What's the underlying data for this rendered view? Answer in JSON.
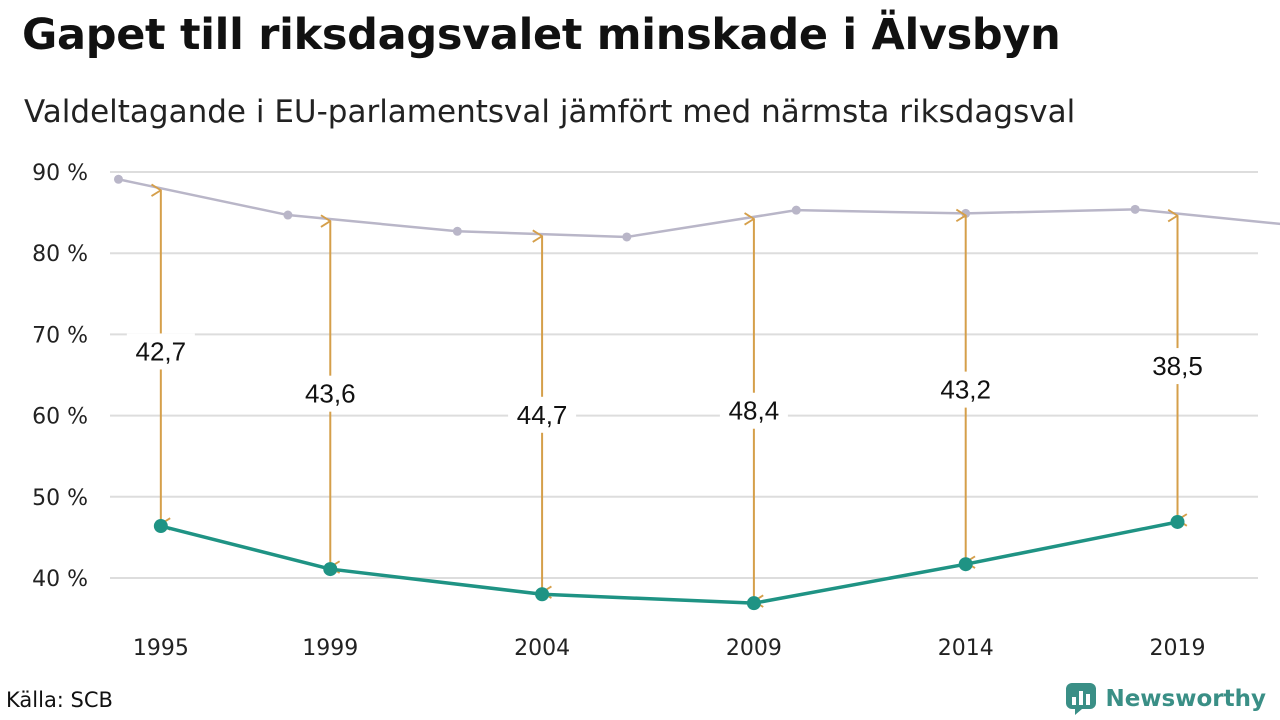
{
  "header": {
    "title": "Gapet till riksdagsvalet minskade i Älvsbyn",
    "subtitle": "Valdeltagande i EU-parlamentsval jämfört med närmsta riksdagsval"
  },
  "footer": {
    "source": "Källa: SCB",
    "brand": "Newsworthy"
  },
  "colors": {
    "eu_line": "#1f9384",
    "riksdag_line": "#b9b6c8",
    "gap_arrow": "#d59f4a",
    "grid": "#dddddd"
  },
  "chart_data": {
    "type": "line",
    "ylim": [
      35,
      90
    ],
    "yticks": [
      40,
      50,
      60,
      70,
      80,
      90
    ],
    "ytick_labels": [
      "40 %",
      "50 %",
      "60 %",
      "70 %",
      "80 %",
      "90 %"
    ],
    "xlim": [
      1993.8,
      2020.9
    ],
    "xticks": [
      1995,
      1999,
      2004,
      2009,
      2014,
      2019
    ],
    "xtick_labels": [
      "1995",
      "1999",
      "2004",
      "2009",
      "2014",
      "2019"
    ],
    "series": [
      {
        "key": "riksdag",
        "x": [
          1994,
          1998,
          2002,
          2006,
          2010,
          2014,
          2018,
          2022
        ],
        "values": [
          89.1,
          84.7,
          82.7,
          82.0,
          85.3,
          84.9,
          85.4,
          83.3
        ]
      },
      {
        "key": "eu",
        "x": [
          1995,
          1999,
          2004,
          2009,
          2014,
          2019
        ],
        "values": [
          46.4,
          41.1,
          38.0,
          36.9,
          41.7,
          46.9
        ]
      }
    ],
    "gaps": [
      {
        "x": 1995,
        "label": "42,7",
        "top": 89.1,
        "bottom": 46.4,
        "label_y": 67.9
      },
      {
        "x": 1999,
        "label": "43,6",
        "top": 84.7,
        "bottom": 41.1,
        "label_y": 62.7
      },
      {
        "x": 2004,
        "label": "44,7",
        "top": 82.7,
        "bottom": 38.0,
        "label_y": 60.1
      },
      {
        "x": 2009,
        "label": "48,4",
        "top": 85.3,
        "bottom": 36.9,
        "label_y": 60.6
      },
      {
        "x": 2014,
        "label": "43,2",
        "top": 84.9,
        "bottom": 41.7,
        "label_y": 63.2
      },
      {
        "x": 2019,
        "label": "38,5",
        "top": 85.4,
        "bottom": 46.9,
        "label_y": 66.1
      }
    ]
  }
}
